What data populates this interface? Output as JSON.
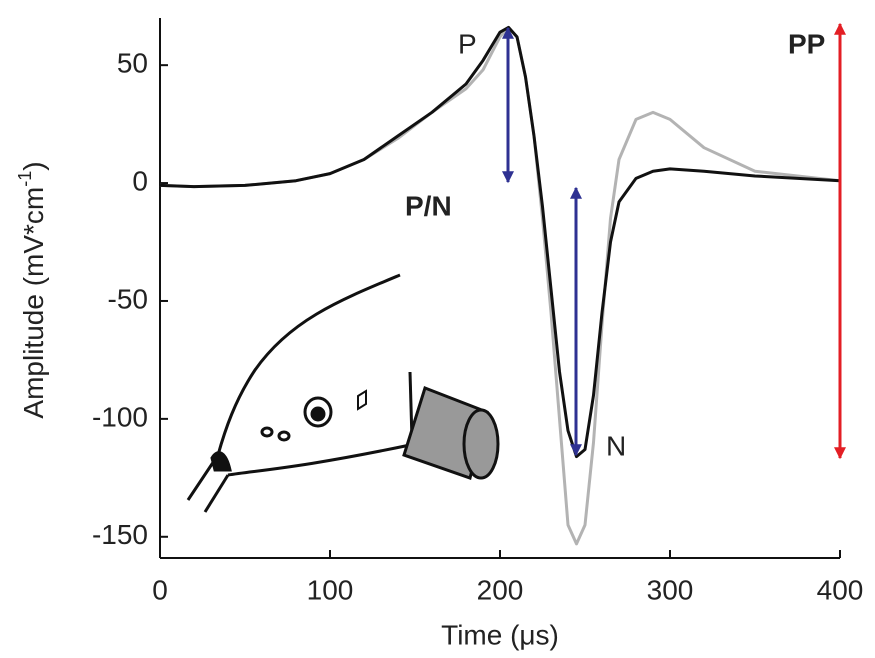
{
  "chart_data": {
    "type": "line",
    "xlabel": "Time (μs)",
    "ylabel": "Amplitude (mV*cm",
    "ylabel_sup": "-1",
    "ylabel_end": ")",
    "x": [
      0,
      20,
      50,
      80,
      100,
      120,
      140,
      160,
      180,
      190,
      200,
      205,
      210,
      215,
      220,
      225,
      230,
      235,
      240,
      245,
      250,
      255,
      260,
      265,
      270,
      280,
      290,
      300,
      320,
      350,
      400
    ],
    "series": [
      {
        "color": "#b3b3b3",
        "values": [
          -1,
          -1.5,
          -1,
          1,
          4,
          10,
          19,
          30,
          40,
          48,
          62,
          66,
          62,
          45,
          20,
          -15,
          -55,
          -100,
          -145,
          -153,
          -145,
          -110,
          -60,
          -15,
          10,
          27,
          30,
          27,
          15,
          5,
          1
        ]
      },
      {
        "color": "#111111",
        "values": [
          -1,
          -1.5,
          -1,
          1,
          4,
          10,
          20,
          30,
          42,
          52,
          64,
          66,
          62,
          45,
          20,
          -10,
          -45,
          -80,
          -105,
          -116,
          -113,
          -90,
          -55,
          -25,
          -8,
          2,
          5,
          6,
          5,
          3,
          1
        ]
      }
    ],
    "xlim": [
      0,
      400
    ],
    "xticks": [
      0,
      100,
      200,
      300,
      400
    ],
    "ylim": [
      -159,
      70
    ],
    "yticks": [
      -150,
      -100,
      -50,
      0,
      50
    ],
    "annotations": [
      {
        "text": "P",
        "color": "#2e3192"
      },
      {
        "text": "N",
        "color": "#2e3192"
      },
      {
        "text": "P/N",
        "color": "#2e3192"
      },
      {
        "text": "PP",
        "color": "#e31e24"
      }
    ]
  }
}
